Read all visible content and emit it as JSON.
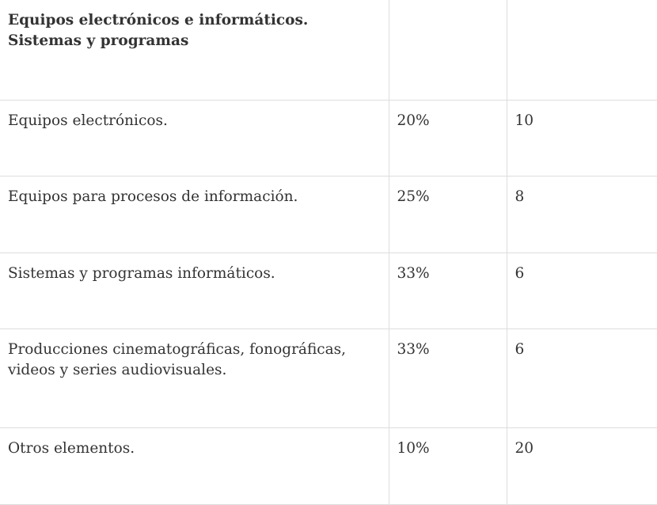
{
  "table": {
    "header": {
      "title": "Equipos electrónicos e informáticos. Sistemas y programas",
      "col2": "",
      "col3": ""
    },
    "rows": [
      {
        "element": "Equipos electrónicos.",
        "percent": "20%",
        "years": "10"
      },
      {
        "element": "Equipos para procesos de información.",
        "percent": "25%",
        "years": "8"
      },
      {
        "element": "Sistemas y programas informáticos.",
        "percent": "33%",
        "years": "6"
      },
      {
        "element": "Producciones cinematográficas, fonográficas, videos y series audiovisuales.",
        "percent": "33%",
        "years": "6"
      },
      {
        "element": "Otros elementos.",
        "percent": "10%",
        "years": "20"
      }
    ]
  }
}
